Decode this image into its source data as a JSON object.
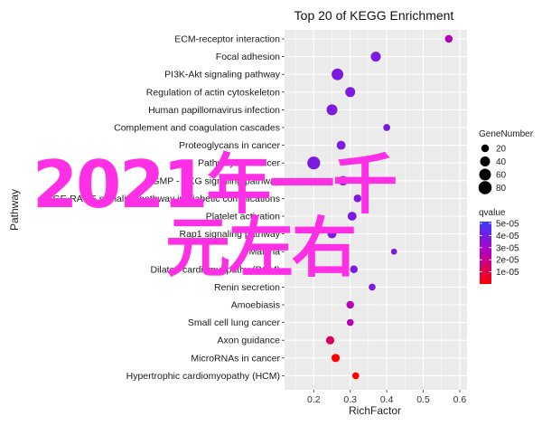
{
  "chart_data": {
    "type": "scatter",
    "title": "Top 20 of KEGG Enrichment",
    "xlabel": "RichFactor",
    "ylabel": "Pathway",
    "xlim": [
      0.12,
      0.62
    ],
    "xticks": [
      "0.2",
      "0.3",
      "0.4",
      "0.5",
      "0.6"
    ],
    "categories": [
      "ECM-receptor interaction",
      "Focal adhesion",
      "PI3K-Akt signaling pathway",
      "Regulation of actin cytoskeleton",
      "Human papillomavirus infection",
      "Complement and coagulation cascades",
      "Proteoglycans in cancer",
      "Pathways in cancer",
      "cGMP - PKG signaling pathway",
      "AGE-RAGE signaling pathway in diabetic complications",
      "Platelet activation",
      "Rap1 signaling pathway",
      "Malaria",
      "Dilated cardiomyopathy (DCM)",
      "Renin secretion",
      "Amoebiasis",
      "Small cell lung cancer",
      "Axon guidance",
      "MicroRNAs in cancer",
      "Hypertrophic cardiomyopathy (HCM)"
    ],
    "points": [
      {
        "x": 0.57,
        "gene": 20,
        "q": 3e-05
      },
      {
        "x": 0.37,
        "gene": 40,
        "q": 4e-05
      },
      {
        "x": 0.265,
        "gene": 60,
        "q": 4e-05
      },
      {
        "x": 0.3,
        "gene": 40,
        "q": 4e-05
      },
      {
        "x": 0.25,
        "gene": 50,
        "q": 4e-05
      },
      {
        "x": 0.4,
        "gene": 15,
        "q": 4e-05
      },
      {
        "x": 0.275,
        "gene": 30,
        "q": 4e-05
      },
      {
        "x": 0.2,
        "gene": 75,
        "q": 4e-05
      },
      {
        "x": 0.28,
        "gene": 35,
        "q": 4e-05
      },
      {
        "x": 0.32,
        "gene": 20,
        "q": 4e-05
      },
      {
        "x": 0.305,
        "gene": 30,
        "q": 4e-05
      },
      {
        "x": 0.25,
        "gene": 30,
        "q": 4e-05
      },
      {
        "x": 0.42,
        "gene": 10,
        "q": 4e-05
      },
      {
        "x": 0.31,
        "gene": 20,
        "q": 4e-05
      },
      {
        "x": 0.36,
        "gene": 15,
        "q": 4e-05
      },
      {
        "x": 0.3,
        "gene": 20,
        "q": 3e-05
      },
      {
        "x": 0.3,
        "gene": 15,
        "q": 3e-05
      },
      {
        "x": 0.245,
        "gene": 25,
        "q": 2e-05
      },
      {
        "x": 0.26,
        "gene": 25,
        "q": 1e-05
      },
      {
        "x": 0.315,
        "gene": 15,
        "q": 1e-05
      }
    ],
    "size_legend": {
      "title": "GeneNumber",
      "values": [
        20,
        40,
        60,
        80
      ]
    },
    "color_legend": {
      "title": "qvalue",
      "ticks": [
        "5e-05",
        "4e-05",
        "3e-05",
        "2e-05",
        "1e-05"
      ],
      "colors": [
        "#3a3aff",
        "#b000c8",
        "#ff0000"
      ]
    },
    "grid": true,
    "legend_position": "right"
  },
  "overlay": {
    "line1": "2021年一千",
    "line2": "元左右",
    "color": "#ff2fe6"
  }
}
